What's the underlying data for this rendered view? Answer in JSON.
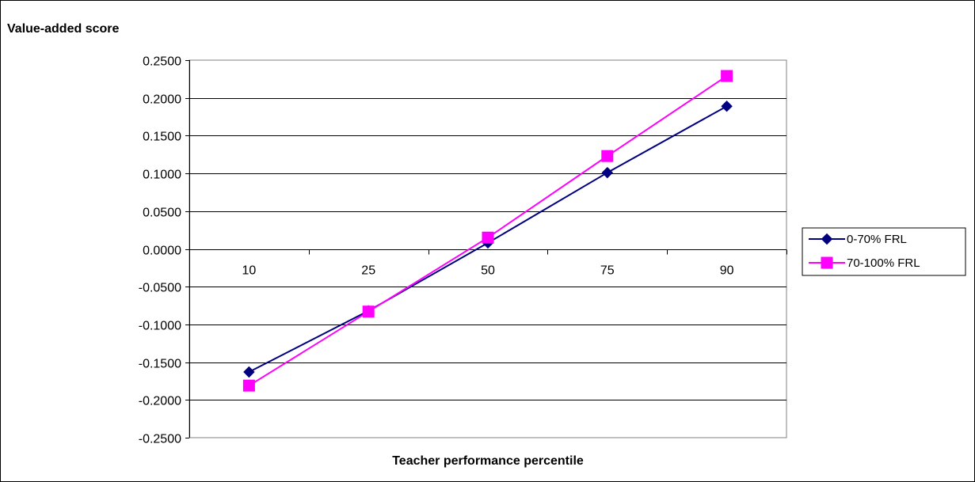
{
  "chart_data": {
    "type": "line",
    "title": "",
    "ylabel": "Value-added score",
    "xlabel": "Teacher performance percentile",
    "categories": [
      "10",
      "25",
      "50",
      "75",
      "90"
    ],
    "y_ticks": [
      "0.2500",
      "0.2000",
      "0.1500",
      "0.1000",
      "0.0500",
      "0.0000",
      "-0.0500",
      "-0.1000",
      "-0.1500",
      "-0.2000",
      "-0.2500"
    ],
    "ylim": [
      -0.25,
      0.25
    ],
    "y_step": 0.05,
    "grid": true,
    "legend_position": "right",
    "series": [
      {
        "name": "0-70% FRL",
        "values": [
          -0.163,
          -0.082,
          0.008,
          0.101,
          0.189
        ],
        "color": "#000080",
        "marker": "diamond"
      },
      {
        "name": "70-100% FRL",
        "values": [
          -0.181,
          -0.083,
          0.015,
          0.123,
          0.229
        ],
        "color": "#FF00FF",
        "marker": "square"
      }
    ]
  }
}
